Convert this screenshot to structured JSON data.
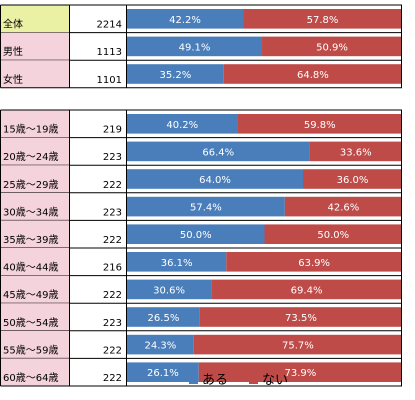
{
  "chart_data": {
    "type": "bar",
    "stacked": true,
    "horizontal": true,
    "percent_scale": true,
    "xlim": [
      0,
      100
    ],
    "columns": [
      "",
      "",
      ""
    ],
    "groups": [
      {
        "rows": [
          {
            "label": "全体",
            "n": "2214",
            "values": [
              42.2,
              57.8
            ],
            "labels": [
              "42.2%",
              "57.8%"
            ],
            "label_bg": "#ebf1a4"
          },
          {
            "label": "男性",
            "n": "1113",
            "values": [
              49.1,
              50.9
            ],
            "labels": [
              "49.1%",
              "50.9%"
            ],
            "label_bg": "#f4d3dc"
          },
          {
            "label": "女性",
            "n": "1101",
            "values": [
              35.2,
              64.8
            ],
            "labels": [
              "35.2%",
              "64.8%"
            ],
            "label_bg": "#f4d3dc"
          }
        ]
      },
      {
        "rows": [
          {
            "label": "15歳～19歳",
            "n": "219",
            "values": [
              40.2,
              59.8
            ],
            "labels": [
              "40.2%",
              "59.8%"
            ],
            "label_bg": "#f4d3dc"
          },
          {
            "label": "20歳～24歳",
            "n": "223",
            "values": [
              66.4,
              33.6
            ],
            "labels": [
              "66.4%",
              "33.6%"
            ],
            "label_bg": "#f4d3dc"
          },
          {
            "label": "25歳～29歳",
            "n": "222",
            "values": [
              64.0,
              36.0
            ],
            "labels": [
              "64.0%",
              "36.0%"
            ],
            "label_bg": "#f4d3dc"
          },
          {
            "label": "30歳～34歳",
            "n": "223",
            "values": [
              57.4,
              42.6
            ],
            "labels": [
              "57.4%",
              "42.6%"
            ],
            "label_bg": "#f4d3dc"
          },
          {
            "label": "35歳～39歳",
            "n": "222",
            "values": [
              50.0,
              50.0
            ],
            "labels": [
              "50.0%",
              "50.0%"
            ],
            "label_bg": "#f4d3dc"
          },
          {
            "label": "40歳～44歳",
            "n": "216",
            "values": [
              36.1,
              63.9
            ],
            "labels": [
              "36.1%",
              "63.9%"
            ],
            "label_bg": "#f4d3dc"
          },
          {
            "label": "45歳～49歳",
            "n": "222",
            "values": [
              30.6,
              69.4
            ],
            "labels": [
              "30.6%",
              "69.4%"
            ],
            "label_bg": "#f4d3dc"
          },
          {
            "label": "50歳～54歳",
            "n": "223",
            "values": [
              26.5,
              73.5
            ],
            "labels": [
              "26.5%",
              "73.5%"
            ],
            "label_bg": "#f4d3dc"
          },
          {
            "label": "55歳～59歳",
            "n": "222",
            "values": [
              24.3,
              75.7
            ],
            "labels": [
              "24.3%",
              "75.7%"
            ],
            "label_bg": "#f4d3dc"
          },
          {
            "label": "60歳～64歳",
            "n": "222",
            "values": [
              26.1,
              73.9
            ],
            "labels": [
              "26.1%",
              "73.9%"
            ],
            "label_bg": "#f4d3dc"
          }
        ]
      }
    ],
    "series": [
      {
        "name": "ある",
        "color": "#4a7ebb"
      },
      {
        "name": "ない",
        "color": "#be4b48"
      }
    ],
    "legend": "bottom-center",
    "grid": false
  }
}
